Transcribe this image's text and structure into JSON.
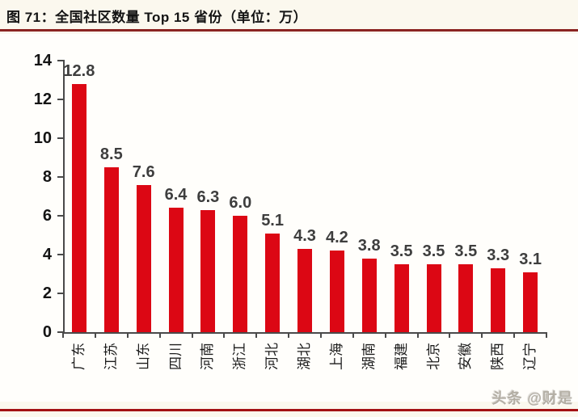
{
  "header": {
    "title": "图 71：全国社区数量 Top 15 省份（单位：万）",
    "underline_color": "#8b2422"
  },
  "chart_data": {
    "type": "bar",
    "title": "图 71：全国社区数量 Top 15 省份（单位：万）",
    "unit": "万",
    "categories": [
      "广东",
      "江苏",
      "山东",
      "四川",
      "河南",
      "浙江",
      "河北",
      "湖北",
      "上海",
      "湖南",
      "福建",
      "北京",
      "安徽",
      "陕西",
      "辽宁"
    ],
    "values": [
      12.8,
      8.5,
      7.6,
      6.4,
      6.3,
      6.0,
      5.1,
      4.3,
      4.2,
      3.8,
      3.5,
      3.5,
      3.5,
      3.3,
      3.1
    ],
    "value_labels": [
      "12.8",
      "8.5",
      "7.6",
      "6.4",
      "6.3",
      "6.0",
      "5.1",
      "4.3",
      "4.2",
      "3.8",
      "3.5",
      "3.5",
      "3.5",
      "3.3",
      "3.1"
    ],
    "xlabel": "",
    "ylabel": "",
    "ylim": [
      0,
      14
    ],
    "yticks": [
      0,
      2,
      4,
      6,
      8,
      10,
      12,
      14
    ],
    "grid": false,
    "legend_position": "none",
    "bar_color": "#dc0714",
    "data_label_color": "#3e3e3e",
    "axis_color": "#4a4a4a",
    "category_labels_rotated_degrees": -90
  },
  "watermark": {
    "text": "头条 @财是"
  },
  "footer": {
    "line_color": "#a41114"
  }
}
